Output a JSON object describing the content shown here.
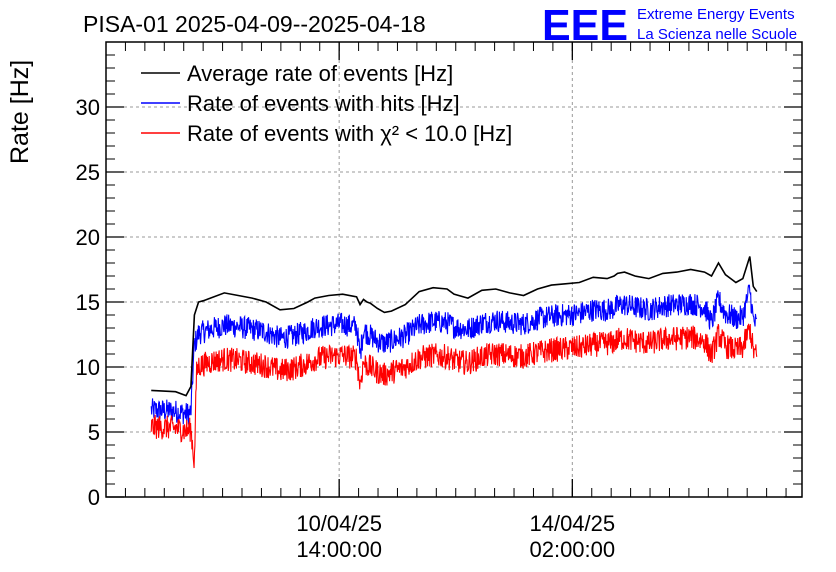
{
  "chart_data": {
    "type": "line",
    "title": "PISA-01 2025-04-09--2025-04-18",
    "ylabel": "Rate [Hz]",
    "xlabel": "",
    "ylim": [
      0,
      35
    ],
    "yticks": [
      0,
      5,
      10,
      15,
      20,
      25,
      30
    ],
    "ytick_labels": [
      "0",
      "5",
      "10",
      "15",
      "20",
      "25",
      "30"
    ],
    "grid": true,
    "legend_position": "top-left",
    "xlim": [
      0,
      10
    ],
    "xticks": [
      {
        "x": 3.35,
        "date": "10/04/25",
        "time": "14:00:00"
      },
      {
        "x": 6.7,
        "date": "14/04/25",
        "time": "02:00:00"
      }
    ],
    "series": [
      {
        "name": "Average rate of events [Hz]",
        "color": "#000000",
        "x": [
          0.65,
          1.0,
          1.15,
          1.22,
          1.27,
          1.3,
          1.33,
          1.4,
          1.5,
          1.7,
          1.9,
          2.1,
          2.3,
          2.5,
          2.7,
          2.9,
          3.0,
          3.2,
          3.4,
          3.6,
          3.65,
          3.7,
          3.75,
          3.8,
          3.9,
          4.0,
          4.1,
          4.3,
          4.5,
          4.7,
          4.9,
          5.0,
          5.2,
          5.4,
          5.6,
          5.8,
          6.0,
          6.2,
          6.4,
          6.6,
          6.8,
          7.0,
          7.2,
          7.3,
          7.35,
          7.45,
          7.6,
          7.8,
          8.0,
          8.2,
          8.4,
          8.6,
          8.7,
          8.8,
          8.9,
          9.0,
          9.05,
          9.15,
          9.25,
          9.3,
          9.35
        ],
        "values": [
          8.2,
          8.1,
          7.8,
          8.5,
          14.0,
          14.5,
          15.0,
          15.1,
          15.3,
          15.7,
          15.5,
          15.3,
          15.0,
          14.4,
          14.5,
          15.0,
          15.3,
          15.5,
          15.6,
          15.4,
          14.8,
          15.2,
          15.0,
          14.9,
          14.5,
          14.2,
          14.3,
          14.8,
          15.8,
          16.1,
          16.0,
          15.6,
          15.3,
          15.9,
          16.0,
          15.7,
          15.5,
          16.0,
          16.3,
          16.4,
          16.5,
          16.9,
          16.8,
          17.0,
          17.2,
          17.3,
          17.0,
          16.8,
          17.2,
          17.3,
          17.5,
          17.3,
          17.0,
          18.0,
          17.1,
          16.7,
          16.5,
          16.8,
          18.5,
          16.2,
          15.8
        ]
      },
      {
        "name": "Rate of events with hits [Hz]",
        "color": "#0000ff",
        "x": [
          0.65,
          1.0,
          1.15,
          1.22,
          1.27,
          1.3,
          1.33,
          1.4,
          1.5,
          1.7,
          1.9,
          2.1,
          2.3,
          2.5,
          2.7,
          2.9,
          3.0,
          3.2,
          3.4,
          3.6,
          3.65,
          3.7,
          3.75,
          3.8,
          3.9,
          4.0,
          4.1,
          4.3,
          4.5,
          4.7,
          4.9,
          5.0,
          5.2,
          5.4,
          5.6,
          5.8,
          6.0,
          6.2,
          6.4,
          6.6,
          6.8,
          7.0,
          7.2,
          7.3,
          7.35,
          7.45,
          7.6,
          7.8,
          8.0,
          8.2,
          8.4,
          8.6,
          8.7,
          8.8,
          8.9,
          9.0,
          9.05,
          9.15,
          9.25,
          9.3,
          9.35
        ],
        "values": [
          6.7,
          6.6,
          6.4,
          6.5,
          11.8,
          12.1,
          12.6,
          12.7,
          12.9,
          13.2,
          13.1,
          12.9,
          12.7,
          12.2,
          12.4,
          12.8,
          13.1,
          13.2,
          13.3,
          13.1,
          10.9,
          12.9,
          12.6,
          12.4,
          12.0,
          11.8,
          12.0,
          12.4,
          13.2,
          13.5,
          13.4,
          13.1,
          12.9,
          13.4,
          13.6,
          13.4,
          13.3,
          13.7,
          13.9,
          14.0,
          14.1,
          14.4,
          14.4,
          14.5,
          14.7,
          14.8,
          14.6,
          14.4,
          14.7,
          14.8,
          14.9,
          14.6,
          13.4,
          15.2,
          14.1,
          13.9,
          13.7,
          13.9,
          16.0,
          13.6,
          13.2
        ]
      },
      {
        "name": "Rate of events with χ² < 10.0 [Hz]",
        "color": "#ff0000",
        "x": [
          0.65,
          1.0,
          1.15,
          1.22,
          1.27,
          1.3,
          1.33,
          1.4,
          1.5,
          1.7,
          1.9,
          2.1,
          2.3,
          2.5,
          2.7,
          2.9,
          3.0,
          3.2,
          3.4,
          3.6,
          3.65,
          3.7,
          3.75,
          3.8,
          3.9,
          4.0,
          4.1,
          4.3,
          4.5,
          4.7,
          4.9,
          5.0,
          5.2,
          5.4,
          5.6,
          5.8,
          6.0,
          6.2,
          6.4,
          6.6,
          6.8,
          7.0,
          7.2,
          7.3,
          7.35,
          7.45,
          7.6,
          7.8,
          8.0,
          8.2,
          8.4,
          8.6,
          8.7,
          8.8,
          8.9,
          9.0,
          9.05,
          9.15,
          9.25,
          9.3,
          9.35
        ],
        "values": [
          5.4,
          5.3,
          5.1,
          5.2,
          2.6,
          9.5,
          10.1,
          10.2,
          10.4,
          10.6,
          10.5,
          10.3,
          10.1,
          9.7,
          9.9,
          10.3,
          10.6,
          10.8,
          10.9,
          10.7,
          8.6,
          10.4,
          10.1,
          10.0,
          9.6,
          9.4,
          9.6,
          10.0,
          10.7,
          10.9,
          10.8,
          10.5,
          10.3,
          10.8,
          11.0,
          10.9,
          10.8,
          11.1,
          11.3,
          11.4,
          11.5,
          11.7,
          11.8,
          11.9,
          12.1,
          12.2,
          12.0,
          11.8,
          12.1,
          12.2,
          12.3,
          12.0,
          10.9,
          12.5,
          11.6,
          11.4,
          11.3,
          11.5,
          13.0,
          11.3,
          10.8
        ]
      }
    ]
  },
  "logo": {
    "mark": "EEE",
    "line1": "Extreme Energy Events",
    "line2": "La Scienza nelle Scuole",
    "color": "#0000ff"
  }
}
